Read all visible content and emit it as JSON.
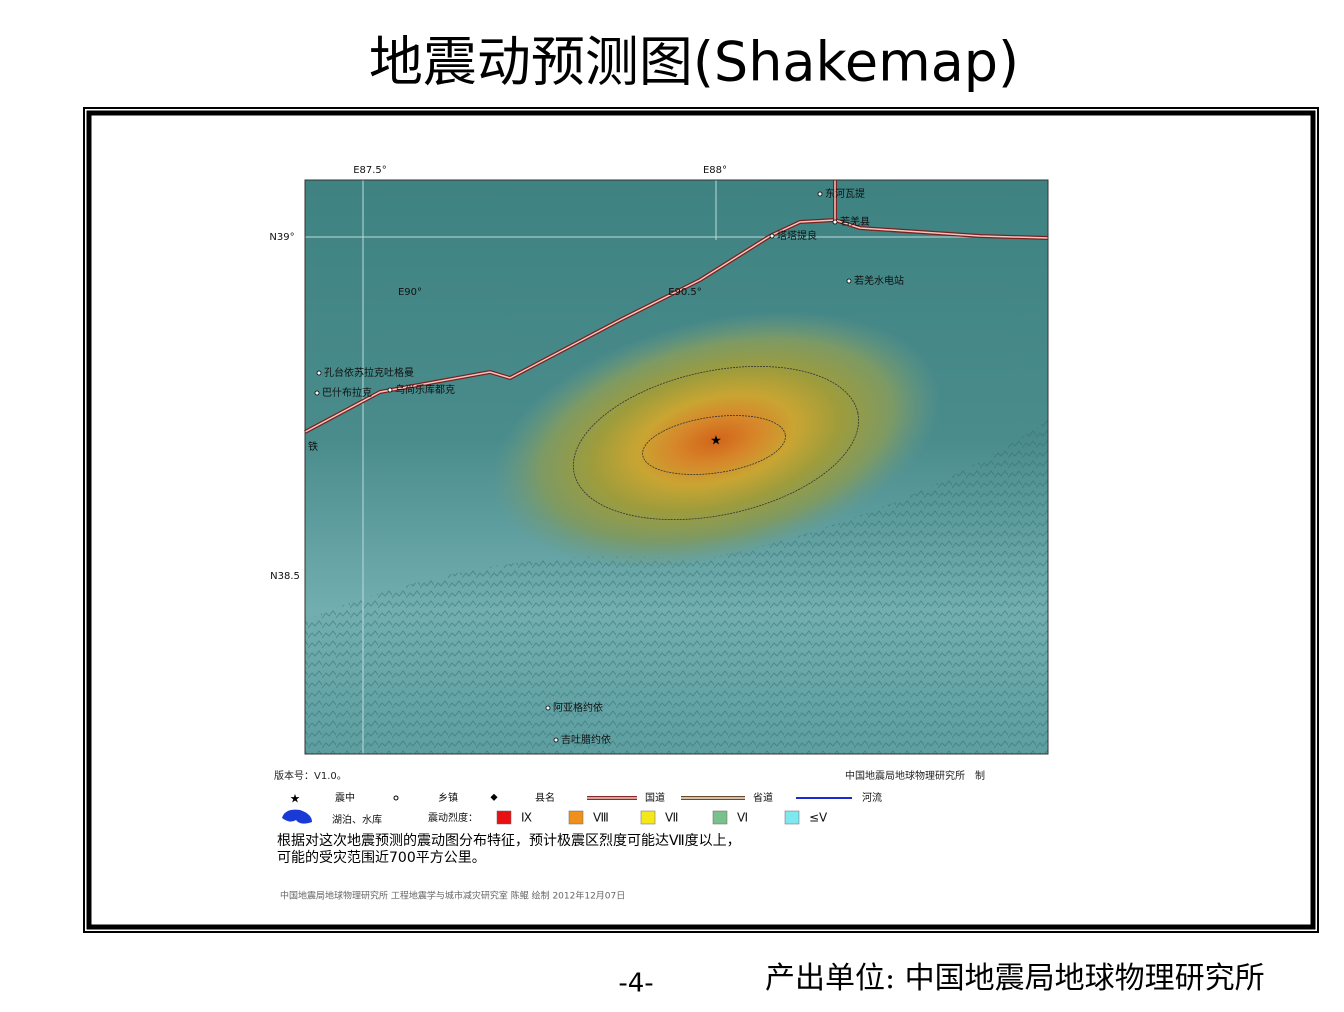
{
  "header": {
    "title": "地震动预测图(Shakemap)"
  },
  "map": {
    "grid_labels": [
      "E87.5°",
      "E88°",
      "N39°",
      "E90°",
      "E90.5°",
      "N38.5"
    ],
    "places": [
      "东河瓦提",
      "若羌县",
      "塔塔提良",
      "若羌水电站",
      "孔台依苏拉克吐格曼",
      "巴什布拉克",
      "乌尚乐库都克",
      "阿亚格约依",
      "吉吐腊约依",
      "铁"
    ]
  },
  "version": "版本号：V1.0。",
  "organization": "中国地震局地球物理研究所　制",
  "legend": {
    "items": [
      "震中",
      "乡镇",
      "县名",
      "国道",
      "省道",
      "河流",
      "湖泊、水库"
    ],
    "intensity_title": "震动烈度：",
    "intensity": [
      "Ⅸ",
      "Ⅷ",
      "Ⅶ",
      "Ⅵ",
      "≤Ⅴ"
    ]
  },
  "note": [
    "根据对这次地震预测的震动图分布特征，预计极震区烈度可能达Ⅶ度以上，",
    "可能的受灾范围近700平方公里。"
  ],
  "credit": "中国地震局地球物理研究所 工程地震学与城市减灾研究室 陈鲲 绘制 2012年12月07日",
  "footer": {
    "page": "-4-",
    "producer": "产出单位: 中国地震局地球物理研究所"
  }
}
